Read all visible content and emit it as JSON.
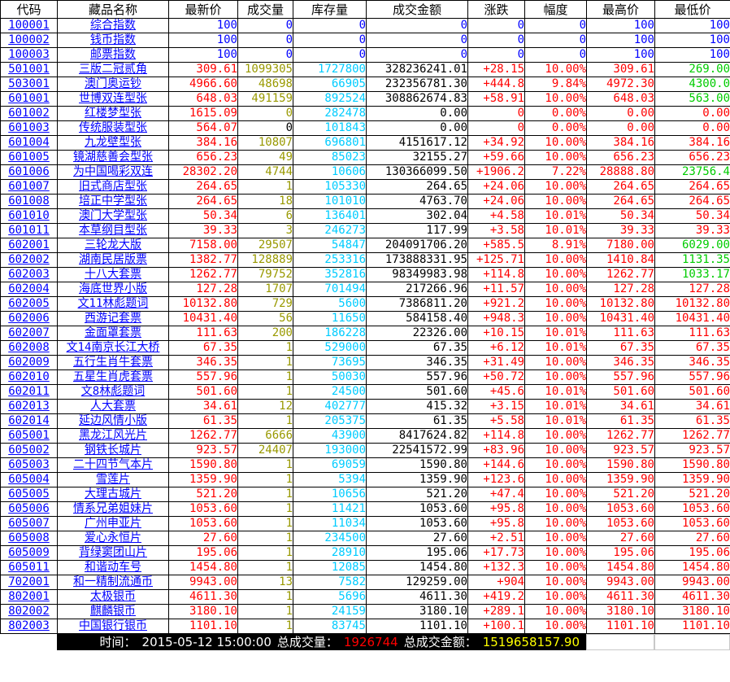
{
  "table": {
    "columns": [
      "代码",
      "藏品名称",
      "最新价",
      "成交量",
      "库存量",
      "成交金额",
      "涨跌",
      "幅度",
      "最高价",
      "最低价"
    ],
    "rows": [
      {
        "c": [
          "100001",
          "综合指数",
          "100",
          "0",
          "0",
          "0",
          "0",
          "0",
          "100",
          "100"
        ],
        "f": "idx"
      },
      {
        "c": [
          "100002",
          "钱币指数",
          "100",
          "0",
          "0",
          "0",
          "0",
          "0",
          "100",
          "100"
        ],
        "f": "idx"
      },
      {
        "c": [
          "100003",
          "邮票指数",
          "100",
          "0",
          "0",
          "0",
          "0",
          "0",
          "100",
          "100"
        ],
        "f": "idx"
      },
      {
        "c": [
          "501001",
          "三版二冠贰角",
          "309.61",
          "1099305",
          "1727800",
          "328236241.01",
          "+28.15",
          "10.00%",
          "309.61",
          "269.00"
        ],
        "f": "lg"
      },
      {
        "c": [
          "503001",
          "澳门奥运钞",
          "4966.60",
          "48698",
          "66905",
          "232356781.30",
          "+444.8",
          "9.84%",
          "4972.30",
          "4300.0"
        ],
        "f": "lg"
      },
      {
        "c": [
          "601001",
          "世博双连型张",
          "648.03",
          "491159",
          "892524",
          "308862674.83",
          "+58.91",
          "10.00%",
          "648.03",
          "563.00"
        ],
        "f": "lg"
      },
      {
        "c": [
          "601002",
          "红楼梦型张",
          "1615.09",
          "0",
          "282478",
          "0.00",
          "0",
          "0.00%",
          "0.00",
          "0.00"
        ],
        "f": ""
      },
      {
        "c": [
          "601003",
          "传统服装型张",
          "564.07",
          "0",
          "101843",
          "0.00",
          "0",
          "0.00%",
          "0.00",
          "0.00"
        ],
        "f": "vb"
      },
      {
        "c": [
          "601004",
          "九龙壁型张",
          "384.16",
          "10807",
          "696801",
          "4151617.12",
          "+34.92",
          "10.00%",
          "384.16",
          "384.16"
        ],
        "f": ""
      },
      {
        "c": [
          "601005",
          "镜湖慈善会型张",
          "656.23",
          "49",
          "85023",
          "32155.27",
          "+59.66",
          "10.00%",
          "656.23",
          "656.23"
        ],
        "f": ""
      },
      {
        "c": [
          "601006",
          "为中国喝彩双连",
          "28302.20",
          "4744",
          "10606",
          "130366099.50",
          "+1906.2",
          "7.22%",
          "28888.80",
          "23756.4"
        ],
        "f": "lg"
      },
      {
        "c": [
          "601007",
          "旧式商店型张",
          "264.65",
          "1",
          "105330",
          "264.65",
          "+24.06",
          "10.00%",
          "264.65",
          "264.65"
        ],
        "f": ""
      },
      {
        "c": [
          "601008",
          "培正中学型张",
          "264.65",
          "18",
          "101010",
          "4763.70",
          "+24.06",
          "10.00%",
          "264.65",
          "264.65"
        ],
        "f": ""
      },
      {
        "c": [
          "601010",
          "澳门大学型张",
          "50.34",
          "6",
          "136401",
          "302.04",
          "+4.58",
          "10.01%",
          "50.34",
          "50.34"
        ],
        "f": ""
      },
      {
        "c": [
          "601011",
          "本草纲目型张",
          "39.33",
          "3",
          "246273",
          "117.99",
          "+3.58",
          "10.01%",
          "39.33",
          "39.33"
        ],
        "f": ""
      },
      {
        "c": [
          "602001",
          "三轮龙大版",
          "7158.00",
          "29507",
          "54847",
          "204091706.20",
          "+585.5",
          "8.91%",
          "7180.00",
          "6029.00"
        ],
        "f": "lg"
      },
      {
        "c": [
          "602002",
          "湖南民居版票",
          "1382.77",
          "128889",
          "253316",
          "173888331.95",
          "+125.71",
          "10.00%",
          "1410.84",
          "1131.35"
        ],
        "f": "lg"
      },
      {
        "c": [
          "602003",
          "十八大套票",
          "1262.77",
          "79752",
          "352816",
          "98349983.98",
          "+114.8",
          "10.00%",
          "1262.77",
          "1033.17"
        ],
        "f": "lg"
      },
      {
        "c": [
          "602004",
          "海底世界小版",
          "127.28",
          "1707",
          "701494",
          "217266.96",
          "+11.57",
          "10.00%",
          "127.28",
          "127.28"
        ],
        "f": ""
      },
      {
        "c": [
          "602005",
          "文11林彪题词",
          "10132.80",
          "729",
          "5600",
          "7386811.20",
          "+921.2",
          "10.00%",
          "10132.80",
          "10132.80"
        ],
        "f": ""
      },
      {
        "c": [
          "602006",
          "西游记套票",
          "10431.40",
          "56",
          "11650",
          "584158.40",
          "+948.3",
          "10.00%",
          "10431.40",
          "10431.40"
        ],
        "f": ""
      },
      {
        "c": [
          "602007",
          "金面罩套票",
          "111.63",
          "200",
          "186228",
          "22326.00",
          "+10.15",
          "10.01%",
          "111.63",
          "111.63"
        ],
        "f": ""
      },
      {
        "c": [
          "602008",
          "文14南京长江大桥",
          "67.35",
          "1",
          "529000",
          "67.35",
          "+6.12",
          "10.01%",
          "67.35",
          "67.35"
        ],
        "f": ""
      },
      {
        "c": [
          "602009",
          "五行生肖牛套票",
          "346.35",
          "1",
          "73695",
          "346.35",
          "+31.49",
          "10.00%",
          "346.35",
          "346.35"
        ],
        "f": ""
      },
      {
        "c": [
          "602010",
          "五星生肖虎套票",
          "557.96",
          "1",
          "50030",
          "557.96",
          "+50.72",
          "10.00%",
          "557.96",
          "557.96"
        ],
        "f": ""
      },
      {
        "c": [
          "602011",
          "文8林彪题词",
          "501.60",
          "1",
          "24500",
          "501.60",
          "+45.6",
          "10.01%",
          "501.60",
          "501.60"
        ],
        "f": ""
      },
      {
        "c": [
          "602013",
          "人大套票",
          "34.61",
          "12",
          "402777",
          "415.32",
          "+3.15",
          "10.01%",
          "34.61",
          "34.61"
        ],
        "f": ""
      },
      {
        "c": [
          "602014",
          "延边风情小版",
          "61.35",
          "1",
          "205375",
          "61.35",
          "+5.58",
          "10.01%",
          "61.35",
          "61.35"
        ],
        "f": ""
      },
      {
        "c": [
          "605001",
          "黑龙江风光片",
          "1262.77",
          "6666",
          "43900",
          "8417624.82",
          "+114.8",
          "10.00%",
          "1262.77",
          "1262.77"
        ],
        "f": ""
      },
      {
        "c": [
          "605002",
          "钢铁长城片",
          "923.57",
          "24407",
          "193000",
          "22541572.99",
          "+83.96",
          "10.00%",
          "923.57",
          "923.57"
        ],
        "f": ""
      },
      {
        "c": [
          "605003",
          "二十四节气本片",
          "1590.80",
          "1",
          "69059",
          "1590.80",
          "+144.6",
          "10.00%",
          "1590.80",
          "1590.80"
        ],
        "f": ""
      },
      {
        "c": [
          "605004",
          "雪莲片",
          "1359.90",
          "1",
          "5394",
          "1359.90",
          "+123.6",
          "10.00%",
          "1359.90",
          "1359.90"
        ],
        "f": ""
      },
      {
        "c": [
          "605005",
          "大理古城片",
          "521.20",
          "1",
          "10656",
          "521.20",
          "+47.4",
          "10.00%",
          "521.20",
          "521.20"
        ],
        "f": ""
      },
      {
        "c": [
          "605006",
          "情系兄弟姐妹片",
          "1053.60",
          "1",
          "11421",
          "1053.60",
          "+95.8",
          "10.00%",
          "1053.60",
          "1053.60"
        ],
        "f": ""
      },
      {
        "c": [
          "605007",
          "广州申亚片",
          "1053.60",
          "1",
          "11034",
          "1053.60",
          "+95.8",
          "10.00%",
          "1053.60",
          "1053.60"
        ],
        "f": ""
      },
      {
        "c": [
          "605008",
          "爱心永恒片",
          "27.60",
          "1",
          "234500",
          "27.60",
          "+2.51",
          "10.00%",
          "27.60",
          "27.60"
        ],
        "f": ""
      },
      {
        "c": [
          "605009",
          "背绿窦团山片",
          "195.06",
          "1",
          "28910",
          "195.06",
          "+17.73",
          "10.00%",
          "195.06",
          "195.06"
        ],
        "f": ""
      },
      {
        "c": [
          "605011",
          "和谐动车号",
          "1454.80",
          "1",
          "12085",
          "1454.80",
          "+132.3",
          "10.00%",
          "1454.80",
          "1454.80"
        ],
        "f": ""
      },
      {
        "c": [
          "702001",
          "和一精制流通币",
          "9943.00",
          "13",
          "7582",
          "129259.00",
          "+904",
          "10.00%",
          "9943.00",
          "9943.00"
        ],
        "f": ""
      },
      {
        "c": [
          "802001",
          "太极银币",
          "4611.30",
          "1",
          "5696",
          "4611.30",
          "+419.2",
          "10.00%",
          "4611.30",
          "4611.30"
        ],
        "f": ""
      },
      {
        "c": [
          "802002",
          "麒麟银币",
          "3180.10",
          "1",
          "24159",
          "3180.10",
          "+289.1",
          "10.00%",
          "3180.10",
          "3180.10"
        ],
        "f": ""
      },
      {
        "c": [
          "802003",
          "中国银行银币",
          "1101.10",
          "1",
          "83745",
          "1101.10",
          "+100.1",
          "10.00%",
          "1101.10",
          "1101.10"
        ],
        "f": ""
      }
    ]
  },
  "footer": {
    "time_label": "时间：",
    "time_value": "2015-05-12 15:00:00",
    "volume_label": "总成交量：",
    "volume_value": "1926744",
    "amount_label": "总成交金额：",
    "amount_value": "1519658157.90"
  },
  "colors": {
    "link_blue": "#0000FF",
    "up_red": "#FF0000",
    "low_green": "#00CC00",
    "volume_olive": "#999900",
    "inventory_cyan": "#00CCFF",
    "footer_bg": "#000000",
    "footer_text": "#FFFFFF",
    "footer_volume": "#FF0000",
    "footer_amount": "#FFFF00"
  }
}
